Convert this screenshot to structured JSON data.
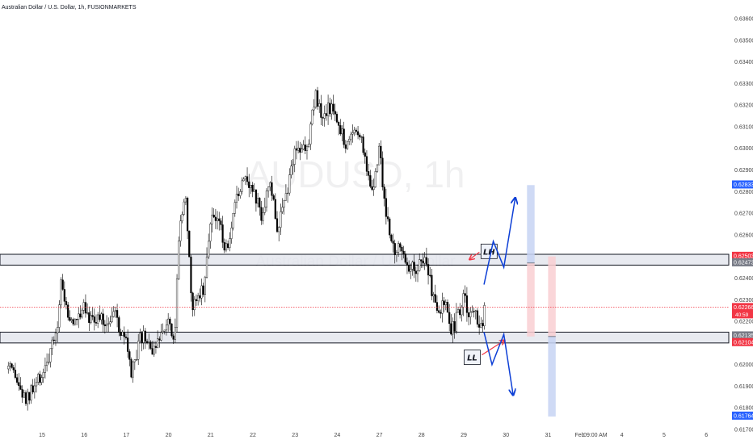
{
  "header": {
    "title": "Australian Dollar / U.S. Dollar, 1h, FUSIONMARKETS"
  },
  "watermark": {
    "symbol": "AUDUSD, 1h",
    "description": "Australian Dollar / U.S. Dollar"
  },
  "chart_data": {
    "type": "candlestick",
    "title": "Australian Dollar / U.S. Dollar, 1h, FUSIONMARKETS",
    "ylim": [
      0.617,
      0.636
    ],
    "y_ticks": [
      "0.63600",
      "0.63500",
      "0.63400",
      "0.63300",
      "0.63200",
      "0.63100",
      "0.63000",
      "0.62900",
      "0.62800",
      "0.62700",
      "0.62600",
      "0.62500",
      "0.62400",
      "0.62300",
      "0.62200",
      "0.62100",
      "0.62000",
      "0.61900",
      "0.61800",
      "0.61700"
    ],
    "x_ticks": [
      {
        "label": "15",
        "t": 0
      },
      {
        "label": "16",
        "t": 1
      },
      {
        "label": "17",
        "t": 2
      },
      {
        "label": "20",
        "t": 3
      },
      {
        "label": "21",
        "t": 4
      },
      {
        "label": "22",
        "t": 5
      },
      {
        "label": "23",
        "t": 6
      },
      {
        "label": "24",
        "t": 7
      },
      {
        "label": "27",
        "t": 8
      },
      {
        "label": "28",
        "t": 9
      },
      {
        "label": "29",
        "t": 10
      },
      {
        "label": "30",
        "t": 11
      },
      {
        "label": "31",
        "t": 12
      },
      {
        "label": "Feb",
        "t": 12.75
      },
      {
        "label": "09:00 AM",
        "t": 13.12
      },
      {
        "label": "4",
        "t": 13.75
      },
      {
        "label": "5",
        "t": 14.75
      },
      {
        "label": "6",
        "t": 15.75
      }
    ],
    "price_path": [
      [
        -0.8,
        0.6198
      ],
      [
        -0.6,
        0.6192
      ],
      [
        -0.4,
        0.6183
      ],
      [
        -0.2,
        0.6188
      ],
      [
        0.0,
        0.6196
      ],
      [
        0.2,
        0.6205
      ],
      [
        0.35,
        0.6215
      ],
      [
        0.45,
        0.624
      ],
      [
        0.6,
        0.6223
      ],
      [
        0.75,
        0.6218
      ],
      [
        0.9,
        0.6225
      ],
      [
        1.0,
        0.6229
      ],
      [
        1.15,
        0.6221
      ],
      [
        1.3,
        0.6222
      ],
      [
        1.5,
        0.6219
      ],
      [
        1.7,
        0.6225
      ],
      [
        1.85,
        0.6215
      ],
      [
        2.0,
        0.621
      ],
      [
        2.1,
        0.6195
      ],
      [
        2.2,
        0.62
      ],
      [
        2.35,
        0.6213
      ],
      [
        2.5,
        0.621
      ],
      [
        2.7,
        0.6205
      ],
      [
        2.85,
        0.6218
      ],
      [
        3.0,
        0.6222
      ],
      [
        3.15,
        0.6212
      ],
      [
        3.25,
        0.6265
      ],
      [
        3.4,
        0.628
      ],
      [
        3.55,
        0.6225
      ],
      [
        3.7,
        0.6234
      ],
      [
        3.85,
        0.6235
      ],
      [
        4.0,
        0.627
      ],
      [
        4.2,
        0.6265
      ],
      [
        4.4,
        0.625
      ],
      [
        4.6,
        0.6275
      ],
      [
        4.8,
        0.629
      ],
      [
        5.0,
        0.628
      ],
      [
        5.2,
        0.627
      ],
      [
        5.4,
        0.6283
      ],
      [
        5.6,
        0.6262
      ],
      [
        5.8,
        0.628
      ],
      [
        6.0,
        0.63
      ],
      [
        6.15,
        0.63
      ],
      [
        6.3,
        0.63
      ],
      [
        6.4,
        0.632
      ],
      [
        6.5,
        0.6325
      ],
      [
        6.65,
        0.631
      ],
      [
        6.8,
        0.632
      ],
      [
        7.0,
        0.6315
      ],
      [
        7.2,
        0.6302
      ],
      [
        7.5,
        0.631
      ],
      [
        7.7,
        0.629
      ],
      [
        7.85,
        0.628
      ],
      [
        8.0,
        0.63
      ],
      [
        8.15,
        0.627
      ],
      [
        8.3,
        0.6255
      ],
      [
        8.55,
        0.6252
      ],
      [
        8.75,
        0.6245
      ],
      [
        8.9,
        0.6245
      ],
      [
        9.05,
        0.625
      ],
      [
        9.15,
        0.6245
      ],
      [
        9.3,
        0.6228
      ],
      [
        9.45,
        0.6223
      ],
      [
        9.55,
        0.6232
      ],
      [
        9.7,
        0.6214
      ],
      [
        9.85,
        0.6222
      ],
      [
        10.0,
        0.623
      ],
      [
        10.15,
        0.6222
      ],
      [
        10.25,
        0.6225
      ],
      [
        10.4,
        0.6215
      ],
      [
        10.5,
        0.6226
      ]
    ],
    "levels": [
      {
        "name": "resistance-zone",
        "top": 0.6251,
        "bottom": 0.6246
      },
      {
        "name": "support-zone",
        "top": 0.6215,
        "bottom": 0.621
      }
    ],
    "current_price": {
      "price": "0.62266",
      "countdown": "40:59",
      "value": 0.62266
    },
    "price_tags": [
      {
        "price": "0.62833",
        "value": 0.62833,
        "color": "#2962ff"
      },
      {
        "price": "0.62503",
        "value": 0.62503,
        "color": "#f23645"
      },
      {
        "price": "0.62473",
        "value": 0.62473,
        "color": "#787b86"
      },
      {
        "price": "0.62135",
        "value": 0.62135,
        "color": "#787b86"
      },
      {
        "price": "0.62104",
        "value": 0.62104,
        "color": "#f23645"
      },
      {
        "price": "0.61764",
        "value": 0.61764,
        "color": "#2962ff"
      }
    ],
    "annotations": [
      {
        "text": "LH",
        "t": 10.6,
        "price": 0.6252
      },
      {
        "text": "LL",
        "t": 10.2,
        "price": 0.6203
      }
    ],
    "positions": [
      {
        "name": "long-position",
        "t0": 11.5,
        "t1": 11.68,
        "entry": 0.6247,
        "target": 0.6283,
        "stop": 0.6213
      },
      {
        "name": "short-position",
        "t0": 12.0,
        "t1": 12.18,
        "entry": 0.6213,
        "target": 0.6176,
        "stop": 0.625
      }
    ],
    "projections": [
      {
        "name": "bullish-projection",
        "points": [
          [
            10.48,
            0.6237
          ],
          [
            10.7,
            0.6257
          ],
          [
            10.95,
            0.6245
          ],
          [
            11.22,
            0.6277
          ]
        ]
      },
      {
        "name": "bearish-projection",
        "points": [
          [
            10.48,
            0.6215
          ],
          [
            10.67,
            0.62
          ],
          [
            10.95,
            0.6214
          ],
          [
            11.17,
            0.6186
          ]
        ]
      }
    ],
    "colors": {
      "up": "#26a69a",
      "down": "#ef5350",
      "candle": "#000000",
      "zone_fill": "#e0e3eb",
      "zone_line": "#131722",
      "current": "#f23645",
      "arrow_red": "#f23645",
      "arrow_blue": "#0d3fd6",
      "long_fill": "#c7d3f3",
      "short_fill": "#f9cfd2"
    }
  }
}
